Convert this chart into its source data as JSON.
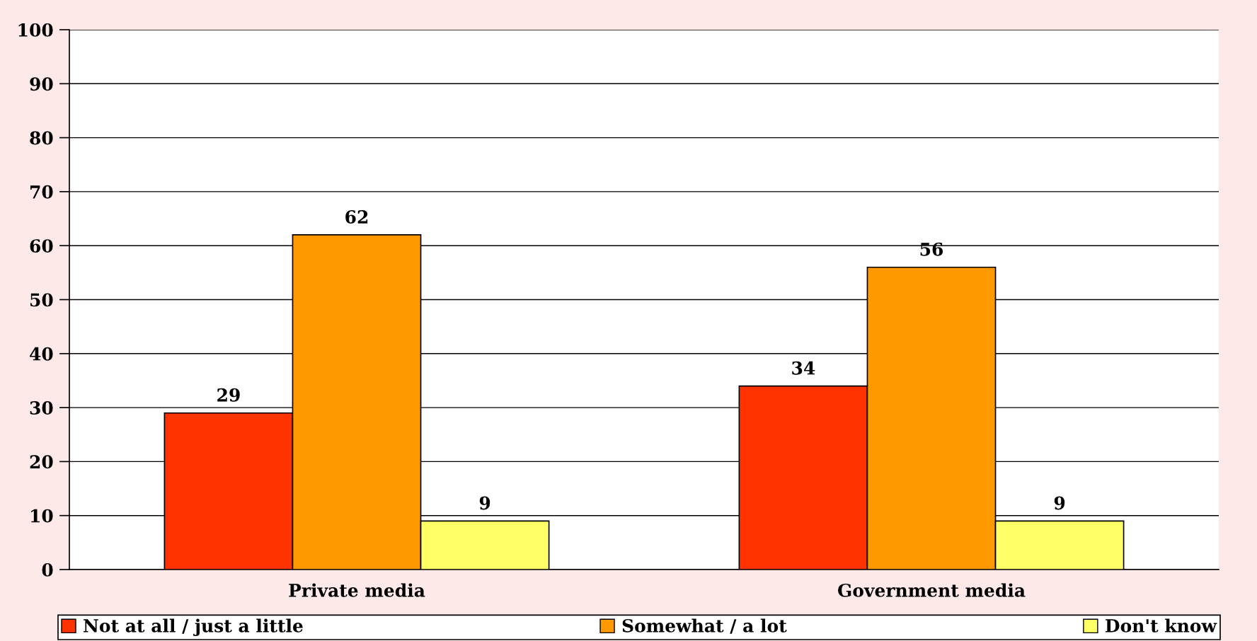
{
  "chart_data": {
    "type": "bar",
    "categories": [
      "Private media",
      "Government media"
    ],
    "series": [
      {
        "name": "Not at all / just a little",
        "color": "#ff3300",
        "values": [
          29,
          34
        ]
      },
      {
        "name": "Somewhat / a lot",
        "color": "#ff9900",
        "values": [
          62,
          56
        ]
      },
      {
        "name": "Don't know",
        "color": "#ffff66",
        "values": [
          9,
          9
        ]
      }
    ],
    "ylim": [
      0,
      100
    ],
    "yticks": [
      0,
      10,
      20,
      30,
      40,
      50,
      60,
      70,
      80,
      90,
      100
    ],
    "grid": "y",
    "legend": "bottom",
    "data_labels": true
  }
}
